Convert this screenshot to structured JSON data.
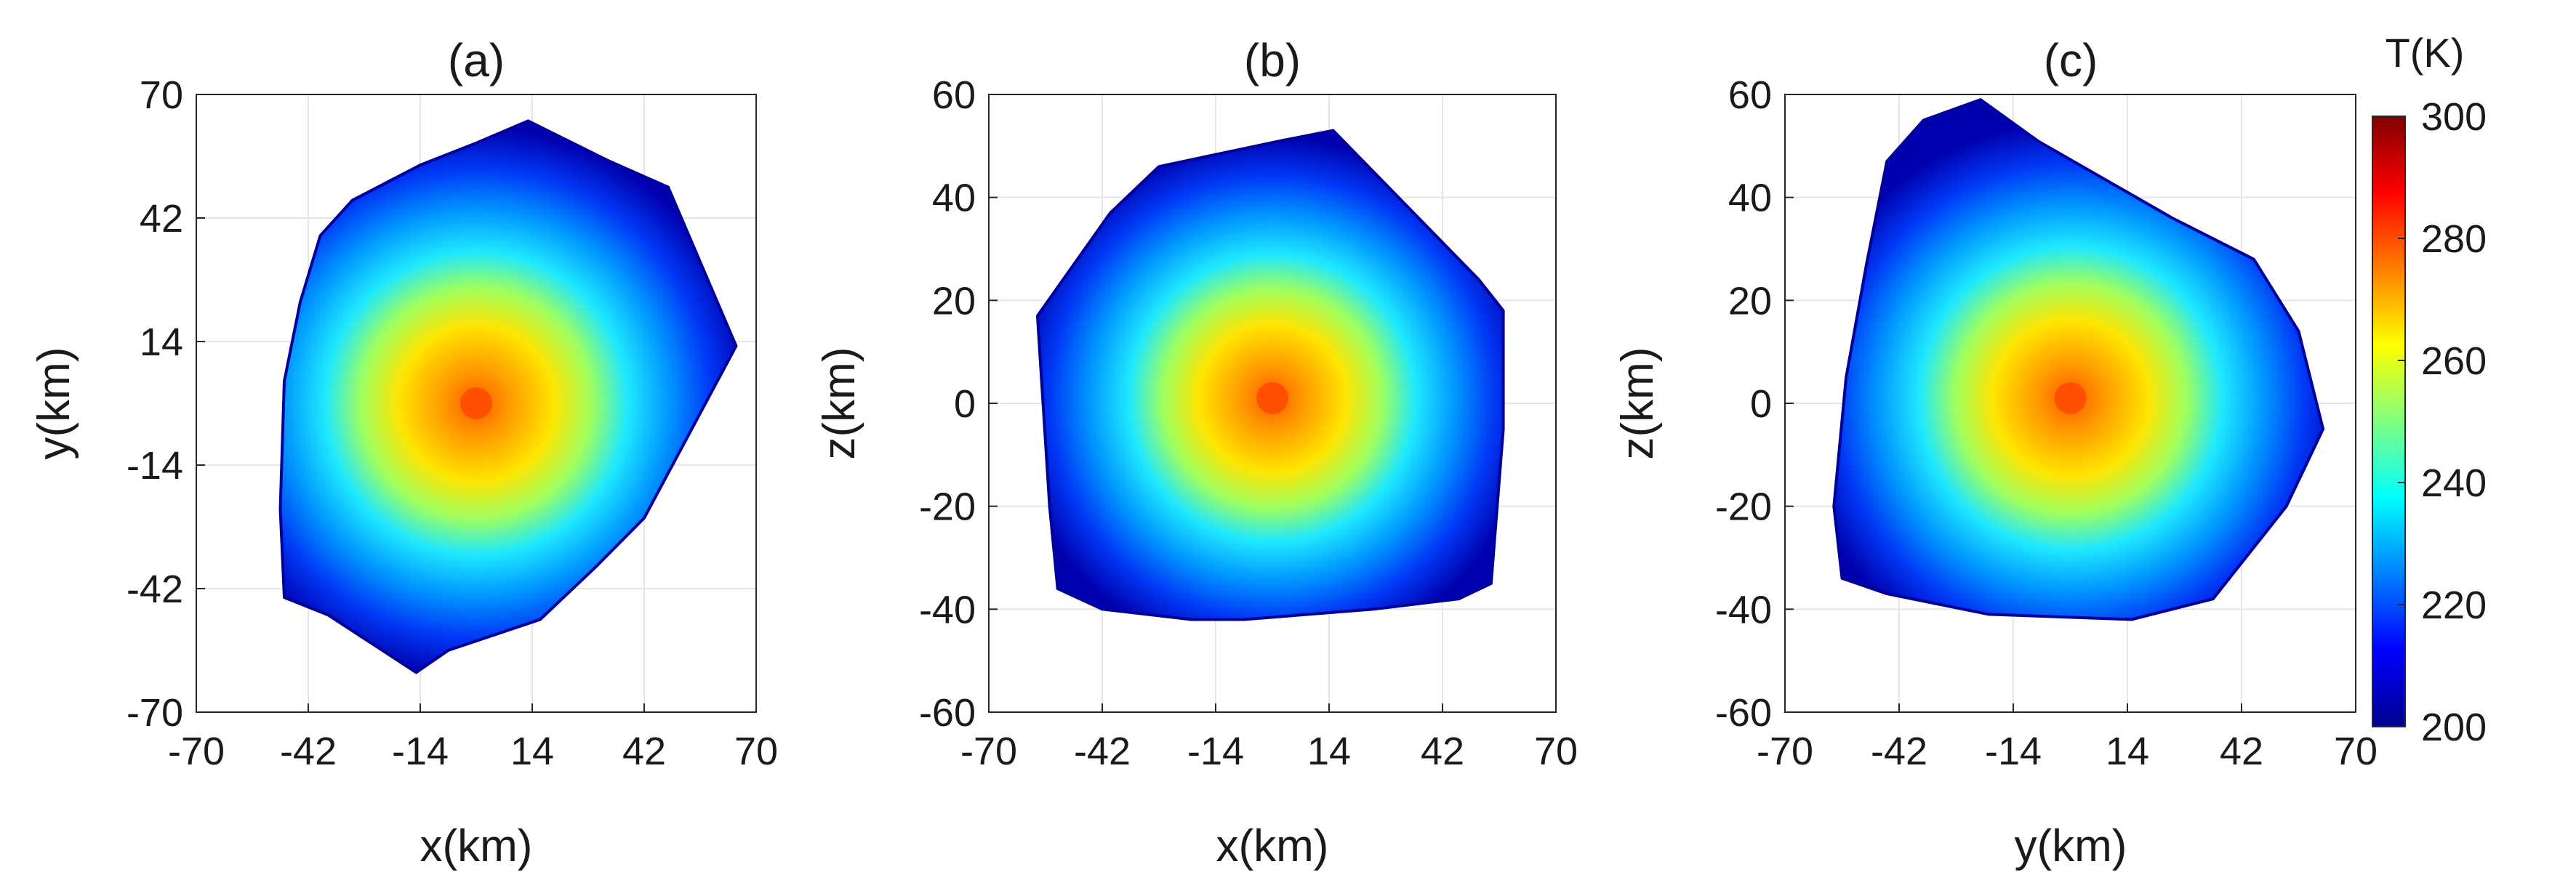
{
  "chart_data": [
    {
      "type": "heatmap",
      "title": "(a)",
      "xlabel": "x(km)",
      "ylabel": "y(km)",
      "xlim": [
        -70,
        70
      ],
      "ylim": [
        -70,
        70
      ],
      "xticks": [
        -70,
        -42,
        -14,
        14,
        42,
        70
      ],
      "yticks": [
        -70,
        -42,
        -14,
        14,
        42,
        70
      ],
      "grid": true,
      "center": [
        0,
        0
      ],
      "peak_value": 280,
      "edge_value": 200,
      "boundary": [
        [
          13,
          64
        ],
        [
          33,
          55
        ],
        [
          48,
          49
        ],
        [
          65,
          13
        ],
        [
          42,
          -26
        ],
        [
          30,
          -37
        ],
        [
          16,
          -49
        ],
        [
          -7,
          -56
        ],
        [
          -15,
          -61
        ],
        [
          -37,
          -48
        ],
        [
          -48,
          -44
        ],
        [
          -49,
          -24
        ],
        [
          -48,
          5
        ],
        [
          -44,
          23
        ],
        [
          -39,
          38
        ],
        [
          -31,
          46
        ],
        [
          -14,
          54
        ],
        [
          0,
          59
        ]
      ]
    },
    {
      "type": "heatmap",
      "title": "(b)",
      "xlabel": "x(km)",
      "ylabel": "z(km)",
      "xlim": [
        -70,
        70
      ],
      "ylim": [
        -60,
        60
      ],
      "xticks": [
        -70,
        -42,
        -14,
        14,
        42,
        70
      ],
      "yticks": [
        -60,
        -40,
        -20,
        0,
        20,
        40,
        60
      ],
      "grid": true,
      "center": [
        0,
        1
      ],
      "peak_value": 280,
      "edge_value": 200,
      "boundary": [
        [
          15,
          53
        ],
        [
          51,
          24
        ],
        [
          57,
          18
        ],
        [
          57,
          -5
        ],
        [
          54,
          -35
        ],
        [
          46,
          -38
        ],
        [
          25,
          -40
        ],
        [
          -7,
          -42
        ],
        [
          -20,
          -42
        ],
        [
          -42,
          -40
        ],
        [
          -53,
          -36
        ],
        [
          -55,
          -20
        ],
        [
          -58,
          17
        ],
        [
          -40,
          37
        ],
        [
          -28,
          46
        ],
        [
          -10,
          49
        ],
        [
          2,
          51
        ]
      ]
    },
    {
      "type": "heatmap",
      "title": "(c)",
      "xlabel": "y(km)",
      "ylabel": "z(km)",
      "xlim": [
        -70,
        70
      ],
      "ylim": [
        -60,
        60
      ],
      "xticks": [
        -70,
        -42,
        -14,
        14,
        42,
        70
      ],
      "yticks": [
        -60,
        -40,
        -20,
        0,
        20,
        40,
        60
      ],
      "grid": true,
      "center": [
        0,
        1
      ],
      "peak_value": 280,
      "edge_value": 200,
      "boundary": [
        [
          -22,
          59
        ],
        [
          -8,
          51
        ],
        [
          25,
          36
        ],
        [
          45,
          28
        ],
        [
          56,
          14
        ],
        [
          62,
          -5
        ],
        [
          53,
          -20
        ],
        [
          35,
          -38
        ],
        [
          15,
          -42
        ],
        [
          -20,
          -41
        ],
        [
          -45,
          -37
        ],
        [
          -56,
          -34
        ],
        [
          -58,
          -20
        ],
        [
          -55,
          5
        ],
        [
          -50,
          27
        ],
        [
          -45,
          47
        ],
        [
          -36,
          55
        ]
      ]
    }
  ],
  "colorbar": {
    "title": "T(K)",
    "min": 200,
    "max": 300,
    "ticks": [
      200,
      220,
      240,
      260,
      280,
      300
    ],
    "colormap": "jet",
    "colors": [
      "#00008f",
      "#0000ff",
      "#0080ff",
      "#00ffff",
      "#80ff80",
      "#ffff00",
      "#ff8000",
      "#ff0000",
      "#800000"
    ]
  }
}
